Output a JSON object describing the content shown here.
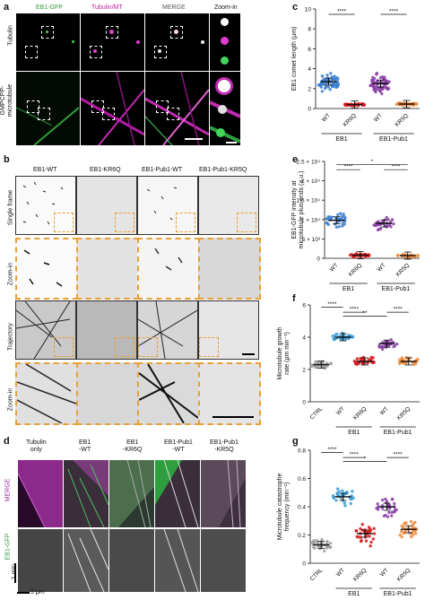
{
  "panels": {
    "a": {
      "label": "a",
      "columns": [
        "EB1-GFP",
        "Tubulin/MT",
        "MERGE",
        "Zoom-in"
      ],
      "rows": [
        "Tubulin",
        "GMPCPP-\nmicrotubule"
      ]
    },
    "b": {
      "label": "b",
      "columns": [
        "EB1-WT",
        "EB1-KR6Q",
        "EB1-Pub1-WT",
        "EB1-Pub1-KR5Q"
      ],
      "rows": [
        "Single frame",
        "Zoom-in",
        "Trajectory",
        "Zoom-in"
      ]
    },
    "d": {
      "label": "d",
      "columns": [
        "Tubulin\nonly",
        "EB1\n-WT",
        "EB1\n-KR6Q",
        "EB1-Pub1\n-WT",
        "EB1-Pub1\n-KR5Q"
      ],
      "rows": [
        "MERGE",
        "EB1-GFP"
      ],
      "time_bar": "1 min",
      "scale_bar": "5 μm"
    },
    "c": {
      "label": "c",
      "ylabel": "EB1 comet length (μm)",
      "sig": [
        "****",
        "****"
      ],
      "xticks": [
        "WT",
        "KR6Q",
        "WT",
        "KR5Q"
      ],
      "groups": [
        "EB1",
        "EB1-Pub1"
      ]
    },
    "e": {
      "label": "e",
      "ylabel": "EB1-GFP intensity at\nmicrotubule plus-ends (a.u.)",
      "sig": [
        "*",
        "****",
        "****"
      ],
      "xticks": [
        "WT",
        "KR6Q",
        "WT",
        "KR5Q"
      ],
      "groups": [
        "EB1",
        "EB1-Pub1"
      ]
    },
    "f": {
      "label": "f",
      "ylabel": "Microtubule growth\nrate (μm min⁻¹)",
      "sig": [
        "****",
        "****",
        "**",
        "****"
      ],
      "xticks": [
        "CTRL",
        "WT",
        "KR6Q",
        "WT",
        "KR5Q"
      ],
      "groups": [
        "EB1",
        "EB1-Pub1"
      ]
    },
    "g": {
      "label": "g",
      "ylabel": "Microtubule catastrophe\nfrequency (min⁻¹)",
      "sig": [
        "****",
        "****",
        "*",
        "****"
      ],
      "xticks": [
        "CTRL",
        "WT",
        "KR6Q",
        "WT",
        "KR5Q"
      ],
      "groups": [
        "EB1",
        "EB1-Pub1"
      ]
    }
  },
  "chart_data": [
    {
      "type": "scatter",
      "panel": "c",
      "ylabel": "EB1 comet length (μm)",
      "ylim": [
        0,
        10
      ],
      "yticks": [
        0,
        2,
        4,
        6,
        8,
        10
      ],
      "categories": [
        "WT",
        "KR6Q",
        "WT",
        "KR5Q"
      ],
      "groups": [
        "EB1",
        "EB1-Pub1"
      ],
      "means": [
        2.7,
        0.4,
        2.5,
        0.45
      ],
      "spread": [
        1.2,
        0.15,
        1.3,
        0.2
      ],
      "colors": [
        "#3a7fd0",
        "#d7191c",
        "#8b3ea8",
        "#f08a3c"
      ]
    },
    {
      "type": "scatter",
      "panel": "e",
      "ylabel": "EB1-GFP intensity at microtubule plus-ends (a.u.)",
      "ylim": [
        0,
        25000
      ],
      "yticks": [
        0,
        5000,
        10000,
        15000,
        20000,
        25000
      ],
      "ytick_labels": [
        "0",
        "5 × 10³",
        "1 × 10⁴",
        "1.5 × 10⁴",
        "2 × 10⁴",
        "2.5 × 10⁴"
      ],
      "categories": [
        "WT",
        "KR6Q",
        "WT",
        "KR5Q"
      ],
      "groups": [
        "EB1",
        "EB1-Pub1"
      ],
      "means": [
        9800,
        800,
        9000,
        700
      ],
      "spread": [
        2500,
        600,
        2000,
        500
      ],
      "colors": [
        "#3a7fd0",
        "#d7191c",
        "#8b3ea8",
        "#f08a3c"
      ]
    },
    {
      "type": "scatter",
      "panel": "f",
      "ylabel": "Microtubule growth rate (μm min⁻¹)",
      "ylim": [
        0,
        6
      ],
      "yticks": [
        0,
        2,
        4,
        6
      ],
      "categories": [
        "CTRL",
        "WT",
        "KR6Q",
        "WT",
        "KR5Q"
      ],
      "groups": [
        "EB1",
        "EB1-Pub1"
      ],
      "means": [
        2.3,
        4.0,
        2.5,
        3.6,
        2.5
      ],
      "spread": [
        0.3,
        0.4,
        0.4,
        0.4,
        0.4
      ],
      "colors": [
        "#9e9e9e",
        "#3a9bd5",
        "#d7191c",
        "#8b3ea8",
        "#f08a3c"
      ]
    },
    {
      "type": "scatter",
      "panel": "g",
      "ylabel": "Microtubule catastrophe frequency (min⁻¹)",
      "ylim": [
        0,
        0.8
      ],
      "yticks": [
        0,
        0.2,
        0.4,
        0.6,
        0.8
      ],
      "categories": [
        "CTRL",
        "WT",
        "KR6Q",
        "WT",
        "KR5Q"
      ],
      "groups": [
        "EB1",
        "EB1-Pub1"
      ],
      "means": [
        0.13,
        0.47,
        0.21,
        0.4,
        0.24
      ],
      "spread": [
        0.05,
        0.12,
        0.1,
        0.12,
        0.08
      ],
      "colors": [
        "#9e9e9e",
        "#3a9bd5",
        "#d7191c",
        "#8b3ea8",
        "#f08a3c"
      ]
    }
  ]
}
